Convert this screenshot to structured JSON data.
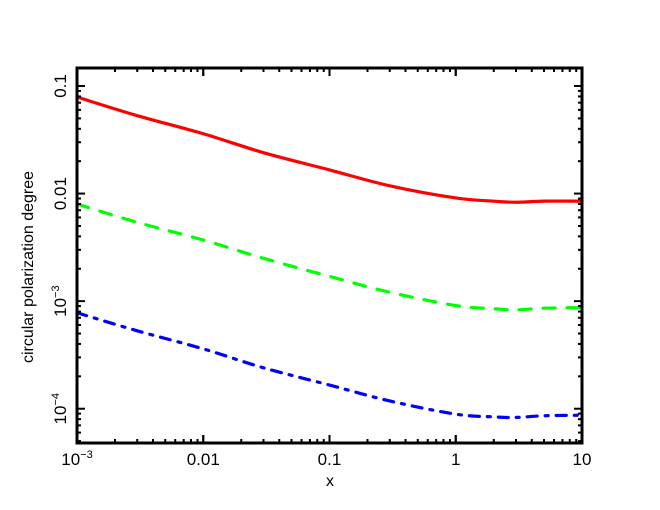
{
  "chart_data": {
    "type": "line",
    "title": "",
    "xlabel": "x",
    "ylabel": "circular polarization degree",
    "xscale": "log",
    "yscale": "log",
    "xlim": [
      0.001,
      10
    ],
    "ylim": [
      4.8e-05,
      0.147
    ],
    "grid": false,
    "legend": null,
    "x_ticks": [
      {
        "value": 0.001,
        "label": "10",
        "sup": "−3"
      },
      {
        "value": 0.01,
        "label": "0.01",
        "sup": ""
      },
      {
        "value": 0.1,
        "label": "0.1",
        "sup": ""
      },
      {
        "value": 1,
        "label": "1",
        "sup": ""
      },
      {
        "value": 10,
        "label": "10",
        "sup": ""
      }
    ],
    "y_ticks": [
      {
        "value": 0.0001,
        "label": "10",
        "sup": "−4"
      },
      {
        "value": 0.001,
        "label": "10",
        "sup": "−3"
      },
      {
        "value": 0.01,
        "label": "0.01",
        "sup": ""
      },
      {
        "value": 0.1,
        "label": "0.1",
        "sup": ""
      }
    ],
    "x": [
      0.001,
      0.003,
      0.01,
      0.03,
      0.1,
      0.3,
      1,
      2,
      3,
      5,
      10
    ],
    "series": [
      {
        "name": "red-solid",
        "color": "#ff0000",
        "style": "solid",
        "values": [
          0.079,
          0.053,
          0.036,
          0.024,
          0.0166,
          0.0118,
          0.0091,
          0.0085,
          0.0083,
          0.0085,
          0.0085
        ]
      },
      {
        "name": "green-dashed",
        "color": "#00ff00",
        "style": "dashed",
        "values": [
          0.008,
          0.0054,
          0.0037,
          0.0025,
          0.0017,
          0.00121,
          0.00091,
          0.00085,
          0.00083,
          0.00086,
          0.00087
        ]
      },
      {
        "name": "blue-dashdot",
        "color": "#0000ff",
        "style": "dashdot",
        "values": [
          0.00078,
          0.00053,
          0.00036,
          0.00024,
          0.000166,
          0.000118,
          8.9e-05,
          8.4e-05,
          8.3e-05,
          8.6e-05,
          8.7e-05
        ]
      }
    ]
  }
}
